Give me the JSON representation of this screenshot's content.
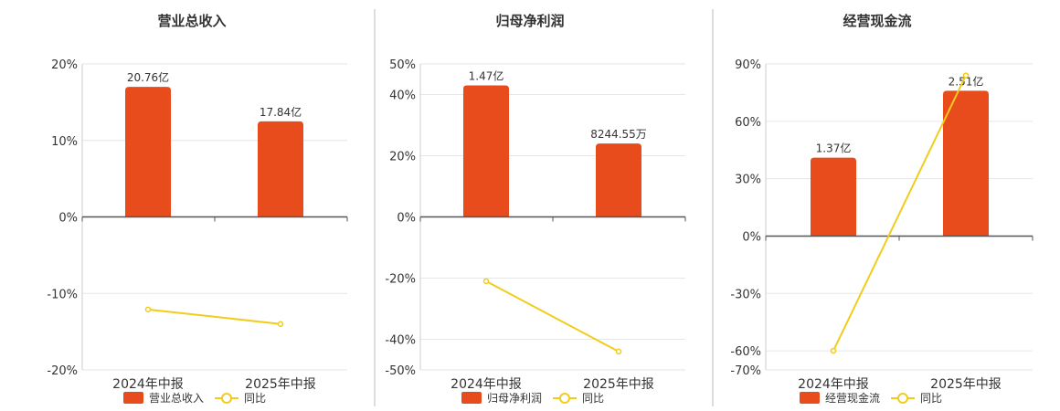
{
  "colors": {
    "bar": "#e84c1c",
    "line": "#f2cc1c",
    "grid": "#e6e6e6",
    "axis": "#555555",
    "divider": "#bbbbbb"
  },
  "chart_data": [
    {
      "type": "bar",
      "title": "营业总收入",
      "categories": [
        "2024年中报",
        "2025年中报"
      ],
      "bar_series": {
        "name": "营业总收入",
        "value_labels": [
          "20.76亿",
          "17.84亿"
        ],
        "values": [
          17,
          12.5
        ]
      },
      "line_series": {
        "name": "同比",
        "values": [
          -12.1,
          -14
        ]
      },
      "ylim": [
        -20,
        20
      ],
      "yticks": [
        20,
        10,
        0,
        -10,
        -20
      ],
      "ytick_labels": [
        "20%",
        "10%",
        "0%",
        "-10%",
        "-20%"
      ],
      "grid": true,
      "legend_position": "bottom"
    },
    {
      "type": "bar",
      "title": "归母净利润",
      "categories": [
        "2024年中报",
        "2025年中报"
      ],
      "bar_series": {
        "name": "归母净利润",
        "value_labels": [
          "1.47亿",
          "8244.55万"
        ],
        "values": [
          43,
          24
        ]
      },
      "line_series": {
        "name": "同比",
        "values": [
          -21,
          -44
        ]
      },
      "ylim": [
        -50,
        50
      ],
      "yticks": [
        50,
        40,
        20,
        0,
        -20,
        -40,
        -50
      ],
      "ytick_labels": [
        "50%",
        "40%",
        "20%",
        "0%",
        "-20%",
        "-40%",
        "-50%"
      ],
      "grid": true,
      "legend_position": "bottom"
    },
    {
      "type": "bar",
      "title": "经营现金流",
      "categories": [
        "2024年中报",
        "2025年中报"
      ],
      "bar_series": {
        "name": "经营现金流",
        "value_labels": [
          "1.37亿",
          "2.51亿"
        ],
        "values": [
          41,
          76
        ]
      },
      "line_series": {
        "name": "同比",
        "values": [
          -60,
          84
        ]
      },
      "ylim": [
        -70,
        90
      ],
      "yticks": [
        90,
        60,
        30,
        0,
        -30,
        -60,
        -70
      ],
      "ytick_labels": [
        "90%",
        "60%",
        "30%",
        "0%",
        "-30%",
        "-60%",
        "-70%"
      ],
      "grid": true,
      "legend_position": "bottom"
    }
  ]
}
